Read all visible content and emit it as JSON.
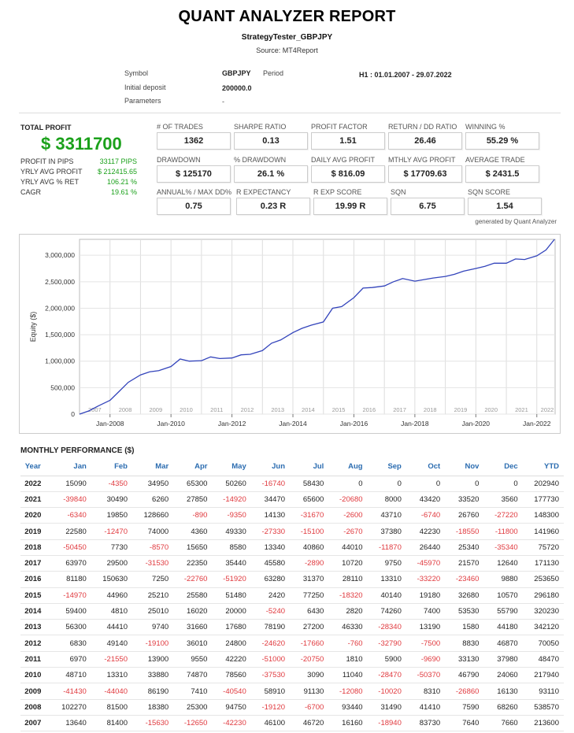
{
  "header": {
    "title": "QUANT ANALYZER REPORT",
    "strategy": "StrategyTester_GBPJPY",
    "source": "Source: MT4Report"
  },
  "info": {
    "symbol_label": "Symbol",
    "symbol_value": "GBPJPY",
    "period_label": "Period",
    "period_value": "H1 : 01.01.2007 - 29.07.2022",
    "deposit_label": "Initial deposit",
    "deposit_value": "200000.0",
    "params_label": "Parameters",
    "params_value": "-"
  },
  "summary": {
    "total_profit_label": "TOTAL PROFIT",
    "total_profit_value": "$ 3311700",
    "items": [
      {
        "label": "PROFIT IN PIPS",
        "value": "33117 PIPS"
      },
      {
        "label": "YRLY AVG PROFIT",
        "value": "$ 212415.65"
      },
      {
        "label": "YRLY AVG % RET",
        "value": "106.21 %"
      },
      {
        "label": "CAGR",
        "value": "19.61 %"
      }
    ]
  },
  "stats": [
    {
      "label": "# OF TRADES",
      "value": "1362"
    },
    {
      "label": "SHARPE RATIO",
      "value": "0.13"
    },
    {
      "label": "PROFIT FACTOR",
      "value": "1.51"
    },
    {
      "label": "RETURN / DD RATIO",
      "value": "26.46"
    },
    {
      "label": "WINNING %",
      "value": "55.29 %"
    },
    {
      "label": "DRAWDOWN",
      "value": "$ 125170"
    },
    {
      "label": "% DRAWDOWN",
      "value": "26.1 %"
    },
    {
      "label": "DAILY AVG PROFIT",
      "value": "$ 816.09"
    },
    {
      "label": "MTHLY AVG PROFIT",
      "value": "$ 17709.63"
    },
    {
      "label": "AVERAGE TRADE",
      "value": "$ 2431.5"
    },
    {
      "label": "ANNUAL% / MAX DD%",
      "value": "0.75"
    },
    {
      "label": "R EXPECTANCY",
      "value": "0.23 R"
    },
    {
      "label": "R EXP SCORE",
      "value": "19.99 R"
    },
    {
      "label": "SQN",
      "value": "6.75"
    },
    {
      "label": "SQN SCORE",
      "value": "1.54"
    }
  ],
  "generated_by": "generated by Quant Analyzer",
  "chart_data": {
    "type": "line",
    "ylabel": "Equity ($)",
    "ylim": [
      0,
      3300000
    ],
    "yticks": [
      "0",
      "500,000",
      "1,000,000",
      "1,500,000",
      "2,000,000",
      "2,500,000",
      "3,000,000"
    ],
    "ytick_values": [
      0,
      500000,
      1000000,
      1500000,
      2000000,
      2500000,
      3000000
    ],
    "xlim": [
      2007.0,
      2022.6
    ],
    "band_labels": [
      "2007",
      "2008",
      "2009",
      "2010",
      "2011",
      "2012",
      "2013",
      "2014",
      "2015",
      "2016",
      "2017",
      "2018",
      "2019",
      "2020",
      "2021",
      "2022"
    ],
    "xticks": [
      "Jan-2008",
      "Jan-2010",
      "Jan-2012",
      "Jan-2014",
      "Jan-2016",
      "Jan-2018",
      "Jan-2020",
      "Jan-2022"
    ],
    "xtick_values": [
      2008,
      2010,
      2012,
      2014,
      2016,
      2018,
      2020,
      2022
    ],
    "grid": true,
    "series": [
      {
        "color": "#3344bb",
        "x": [
          2007.0,
          2007.3,
          2007.6,
          2008.0,
          2008.3,
          2008.6,
          2009.0,
          2009.3,
          2009.6,
          2010.0,
          2010.3,
          2010.6,
          2011.0,
          2011.3,
          2011.6,
          2012.0,
          2012.3,
          2012.6,
          2013.0,
          2013.3,
          2013.6,
          2014.0,
          2014.3,
          2014.6,
          2015.0,
          2015.3,
          2015.6,
          2016.0,
          2016.3,
          2016.6,
          2017.0,
          2017.3,
          2017.6,
          2018.0,
          2018.3,
          2018.6,
          2019.0,
          2019.3,
          2019.6,
          2020.0,
          2020.3,
          2020.6,
          2021.0,
          2021.3,
          2021.6,
          2022.0,
          2022.3,
          2022.58
        ],
        "y": [
          0,
          60000,
          150000,
          260000,
          430000,
          600000,
          740000,
          800000,
          820000,
          900000,
          1040000,
          1000000,
          1010000,
          1080000,
          1050000,
          1060000,
          1120000,
          1130000,
          1200000,
          1340000,
          1400000,
          1540000,
          1620000,
          1680000,
          1740000,
          2000000,
          2030000,
          2200000,
          2380000,
          2390000,
          2420000,
          2500000,
          2560000,
          2510000,
          2540000,
          2570000,
          2600000,
          2640000,
          2700000,
          2750000,
          2790000,
          2850000,
          2850000,
          2930000,
          2920000,
          2990000,
          3100000,
          3300000
        ]
      }
    ]
  },
  "monthly": {
    "title": "MONTHLY PERFORMANCE ($)",
    "headers": [
      "Year",
      "Jan",
      "Feb",
      "Mar",
      "Apr",
      "May",
      "Jun",
      "Jul",
      "Aug",
      "Sep",
      "Oct",
      "Nov",
      "Dec",
      "YTD"
    ],
    "rows": [
      [
        "2022",
        "15090",
        "-4350",
        "34950",
        "65300",
        "50260",
        "-16740",
        "58430",
        "0",
        "0",
        "0",
        "0",
        "0",
        "202940"
      ],
      [
        "2021",
        "-39840",
        "30490",
        "6260",
        "27850",
        "-14920",
        "34470",
        "65600",
        "-20680",
        "8000",
        "43420",
        "33520",
        "3560",
        "177730"
      ],
      [
        "2020",
        "-6340",
        "19850",
        "128660",
        "-890",
        "-9350",
        "14130",
        "-31670",
        "-2600",
        "43710",
        "-6740",
        "26760",
        "-27220",
        "148300"
      ],
      [
        "2019",
        "22580",
        "-12470",
        "74000",
        "4360",
        "49330",
        "-27330",
        "-15100",
        "-2670",
        "37380",
        "42230",
        "-18550",
        "-11800",
        "141960"
      ],
      [
        "2018",
        "-50450",
        "7730",
        "-8570",
        "15650",
        "8580",
        "13340",
        "40860",
        "44010",
        "-11870",
        "26440",
        "25340",
        "-35340",
        "75720"
      ],
      [
        "2017",
        "63970",
        "29500",
        "-31530",
        "22350",
        "35440",
        "45580",
        "-2890",
        "10720",
        "9750",
        "-45970",
        "21570",
        "12640",
        "171130"
      ],
      [
        "2016",
        "81180",
        "150630",
        "7250",
        "-22760",
        "-51920",
        "63280",
        "31370",
        "28110",
        "13310",
        "-33220",
        "-23460",
        "9880",
        "253650"
      ],
      [
        "2015",
        "-14970",
        "44960",
        "25210",
        "25580",
        "51480",
        "2420",
        "77250",
        "-18320",
        "40140",
        "19180",
        "32680",
        "10570",
        "296180"
      ],
      [
        "2014",
        "59400",
        "4810",
        "25010",
        "16020",
        "20000",
        "-5240",
        "6430",
        "2820",
        "74260",
        "7400",
        "53530",
        "55790",
        "320230"
      ],
      [
        "2013",
        "56300",
        "44410",
        "9740",
        "31660",
        "17680",
        "78190",
        "27200",
        "46330",
        "-28340",
        "13190",
        "1580",
        "44180",
        "342120"
      ],
      [
        "2012",
        "6830",
        "49140",
        "-19100",
        "36010",
        "24800",
        "-24620",
        "-17660",
        "-760",
        "-32790",
        "-7500",
        "8830",
        "46870",
        "70050"
      ],
      [
        "2011",
        "6970",
        "-21550",
        "13900",
        "9550",
        "42220",
        "-51000",
        "-20750",
        "1810",
        "5900",
        "-9690",
        "33130",
        "37980",
        "48470"
      ],
      [
        "2010",
        "48710",
        "13310",
        "33880",
        "74870",
        "78560",
        "-37530",
        "3090",
        "11040",
        "-28470",
        "-50370",
        "46790",
        "24060",
        "217940"
      ],
      [
        "2009",
        "-41430",
        "-44040",
        "86190",
        "7410",
        "-40540",
        "58910",
        "91130",
        "-12080",
        "-10020",
        "8310",
        "-26860",
        "16130",
        "93110"
      ],
      [
        "2008",
        "102270",
        "81500",
        "18380",
        "25300",
        "94750",
        "-19120",
        "-6700",
        "93440",
        "31490",
        "41410",
        "7590",
        "68260",
        "538570"
      ],
      [
        "2007",
        "13640",
        "81400",
        "-15630",
        "-12650",
        "-42230",
        "46100",
        "46720",
        "16160",
        "-18940",
        "83730",
        "7640",
        "7660",
        "213600"
      ]
    ]
  }
}
